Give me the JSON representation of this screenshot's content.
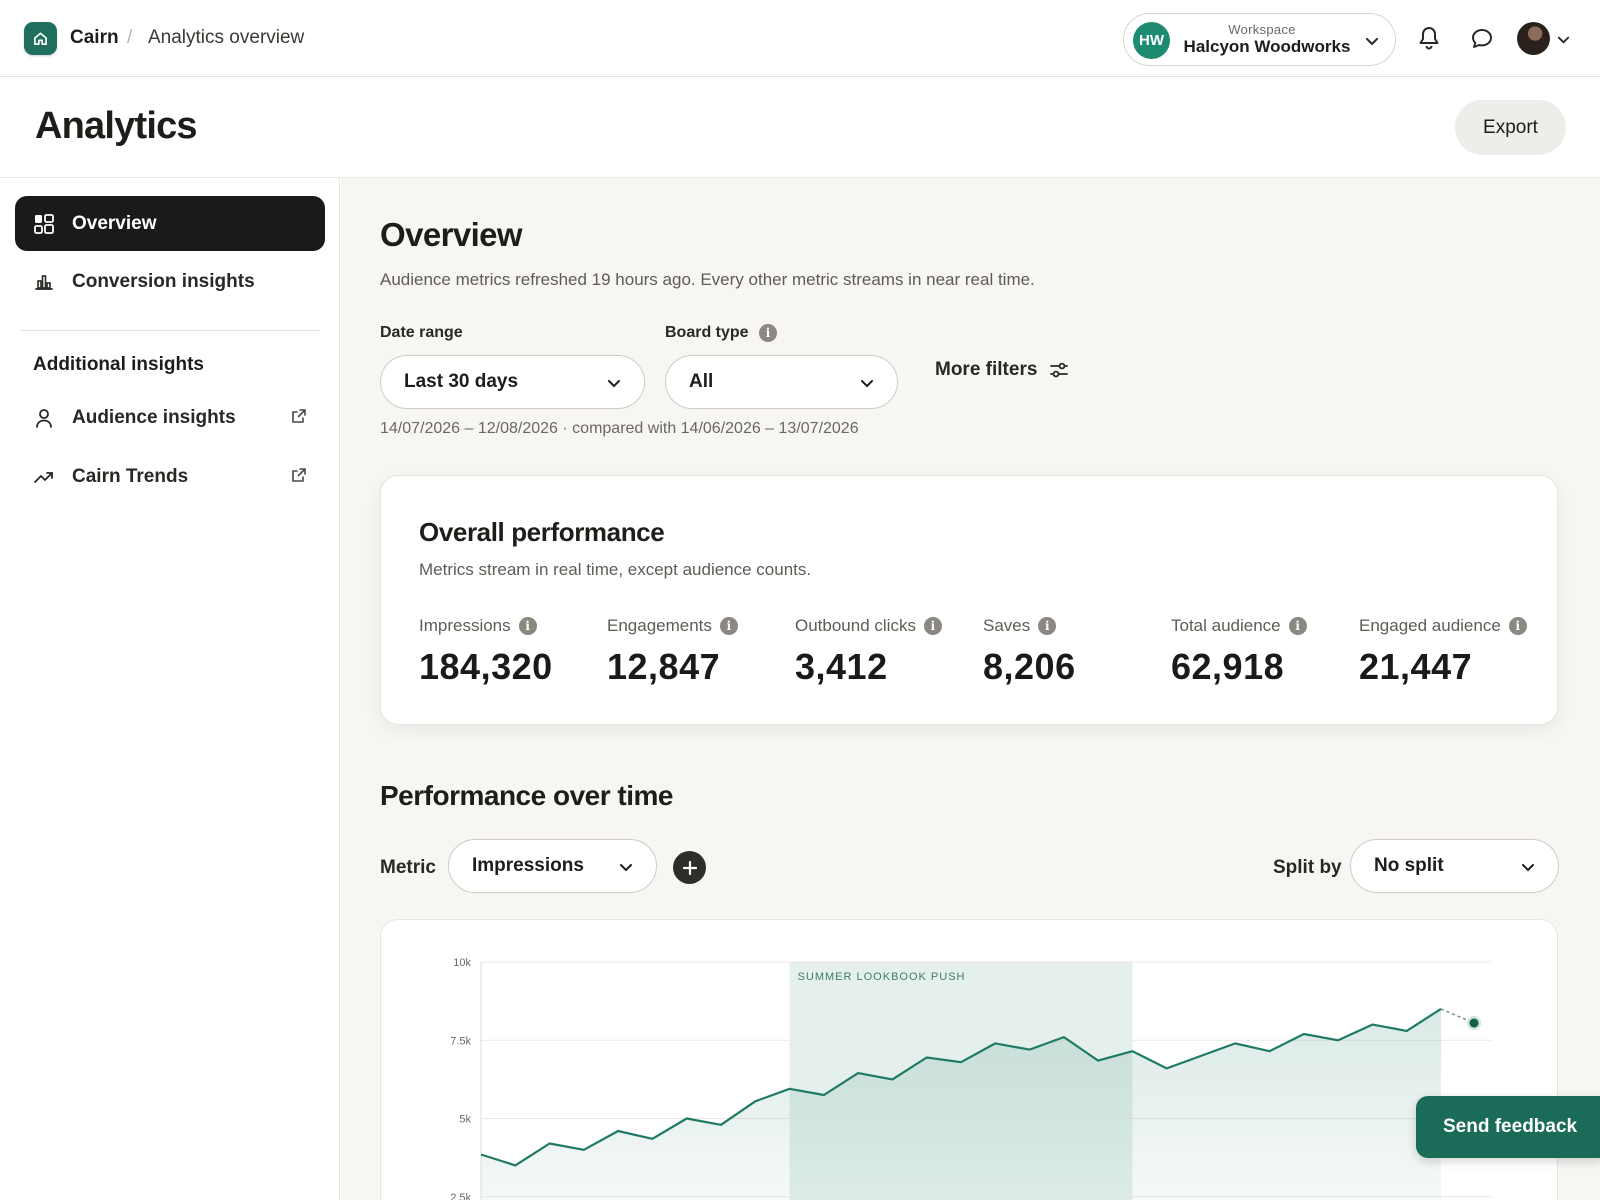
{
  "app": {
    "brand": "Cairn",
    "breadcrumb_sep": "/",
    "breadcrumb_page": "Analytics overview"
  },
  "workspace": {
    "initials": "HW",
    "label": "Workspace",
    "name": "Halcyon Woodworks"
  },
  "header": {
    "title": "Analytics",
    "export_label": "Export"
  },
  "sidebar": {
    "items": [
      {
        "label": "Overview",
        "icon": "grid-icon",
        "active": true
      },
      {
        "label": "Conversion insights",
        "icon": "bar-chart-icon",
        "active": false
      }
    ],
    "section_title": "Additional insights",
    "external": [
      {
        "label": "Audience insights",
        "icon": "person-icon"
      },
      {
        "label": "Cairn Trends",
        "icon": "trend-icon"
      }
    ]
  },
  "overview": {
    "title": "Overview",
    "subtitle": "Audience metrics refreshed 19 hours ago. Every other metric streams in near real time."
  },
  "filters": {
    "date_range_label": "Date range",
    "date_range_value": "Last 30 days",
    "board_type_label": "Board type",
    "board_type_value": "All",
    "more_filters": "More filters",
    "date_note": "14/07/2026 – 12/08/2026 · compared with 14/06/2026 – 13/07/2026"
  },
  "performance": {
    "title": "Overall performance",
    "subtitle": "Metrics stream in real time, except audience counts.",
    "stats": [
      {
        "label": "Impressions",
        "value": "184,320"
      },
      {
        "label": "Engagements",
        "value": "12,847"
      },
      {
        "label": "Outbound clicks",
        "value": "3,412"
      },
      {
        "label": "Saves",
        "value": "8,206"
      },
      {
        "label": "Total audience",
        "value": "62,918"
      },
      {
        "label": "Engaged audience",
        "value": "21,447"
      }
    ]
  },
  "over_time": {
    "title": "Performance over time",
    "metric_label": "Metric",
    "metric_value": "Impressions",
    "split_label": "Split by",
    "split_value": "No split"
  },
  "chart_data": {
    "type": "line",
    "yticks": [
      "10k",
      "7.5k",
      "5k",
      "2.5k"
    ],
    "ylim": [
      0,
      10000
    ],
    "annotation": "SUMMER LOOKBOOK PUSH",
    "annotation_range": [
      9,
      19
    ],
    "series": [
      {
        "values": [
          3850,
          3500,
          4200,
          4000,
          4600,
          4350,
          5000,
          4800,
          5550,
          5950,
          5750,
          6450,
          6250,
          6950,
          6800,
          7400,
          7200,
          7600,
          6850,
          7150,
          6600,
          7000,
          7400,
          7150,
          7700,
          7500,
          8000,
          7800,
          8500
        ],
        "projected": 8050
      }
    ],
    "line_color": "#1f7a65"
  },
  "feedback": {
    "label": "Send feedback"
  },
  "colors": {
    "brand": "#1f6f5c",
    "accent": "#1f8a72",
    "dark": "#1c1a18"
  }
}
